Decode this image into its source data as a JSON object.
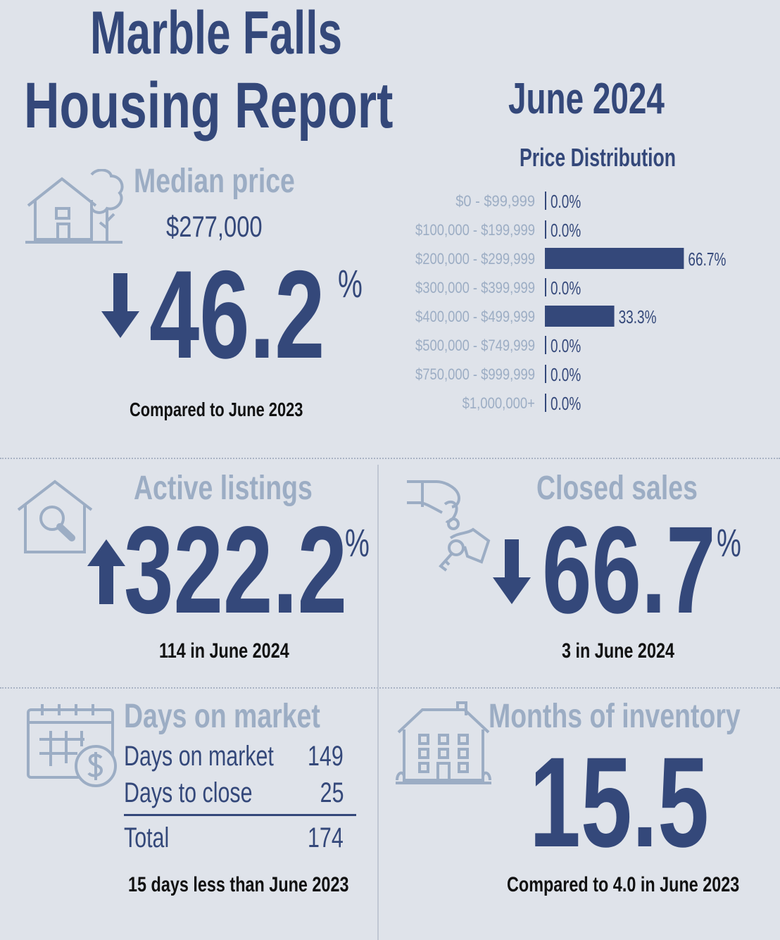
{
  "header": {
    "title_line1": "Marble Falls",
    "title_line2": "Housing Report",
    "period": "June 2024"
  },
  "median": {
    "label": "Median price",
    "value": "$277,000",
    "change_pct": "46.2",
    "pct_sign": "%",
    "direction": "down",
    "compare": "Compared to June 2023",
    "icon": "house-with-tree-icon"
  },
  "chart_data": {
    "type": "bar",
    "orientation": "horizontal",
    "title": "Price Distribution",
    "categories": [
      "$0 - $99,999",
      "$100,000 - $199,999",
      "$200,000 - $299,999",
      "$300,000 - $399,999",
      "$400,000 - $499,999",
      "$500,000 - $749,999",
      "$750,000 - $999,999",
      "$1,000,000+"
    ],
    "values": [
      0.0,
      0.0,
      66.7,
      0.0,
      33.3,
      0.0,
      0.0,
      0.0
    ],
    "value_labels": [
      "0.0%",
      "0.0%",
      "66.7%",
      "0.0%",
      "33.3%",
      "0.0%",
      "0.0%",
      "0.0%"
    ],
    "xlim": [
      0,
      100
    ],
    "grid": false,
    "bar_color": "#34487a"
  },
  "active": {
    "label": "Active listings",
    "change_pct": "322.2",
    "pct_sign": "%",
    "direction": "up",
    "note": "114 in June 2024",
    "icon": "house-magnifier-icon"
  },
  "closed": {
    "label": "Closed sales",
    "change_pct": "66.7",
    "pct_sign": "%",
    "direction": "down",
    "note": "3 in June 2024",
    "icon": "hand-keys-icon"
  },
  "dom": {
    "label": "Days on market",
    "rows": [
      {
        "label": "Days on market",
        "value": "149"
      },
      {
        "label": "Days to close",
        "value": "25"
      }
    ],
    "total_label": "Total",
    "total_value": "174",
    "note": "15 days less than June 2023",
    "icon": "calendar-dollar-icon"
  },
  "moi": {
    "label": "Months of inventory",
    "value": "15.5",
    "note": "Compared to 4.0 in June 2023",
    "icon": "apartment-building-icon"
  },
  "colors": {
    "background": "#dfe3ea",
    "primary": "#34487a",
    "light": "#9cadc4",
    "text": "#111111"
  }
}
